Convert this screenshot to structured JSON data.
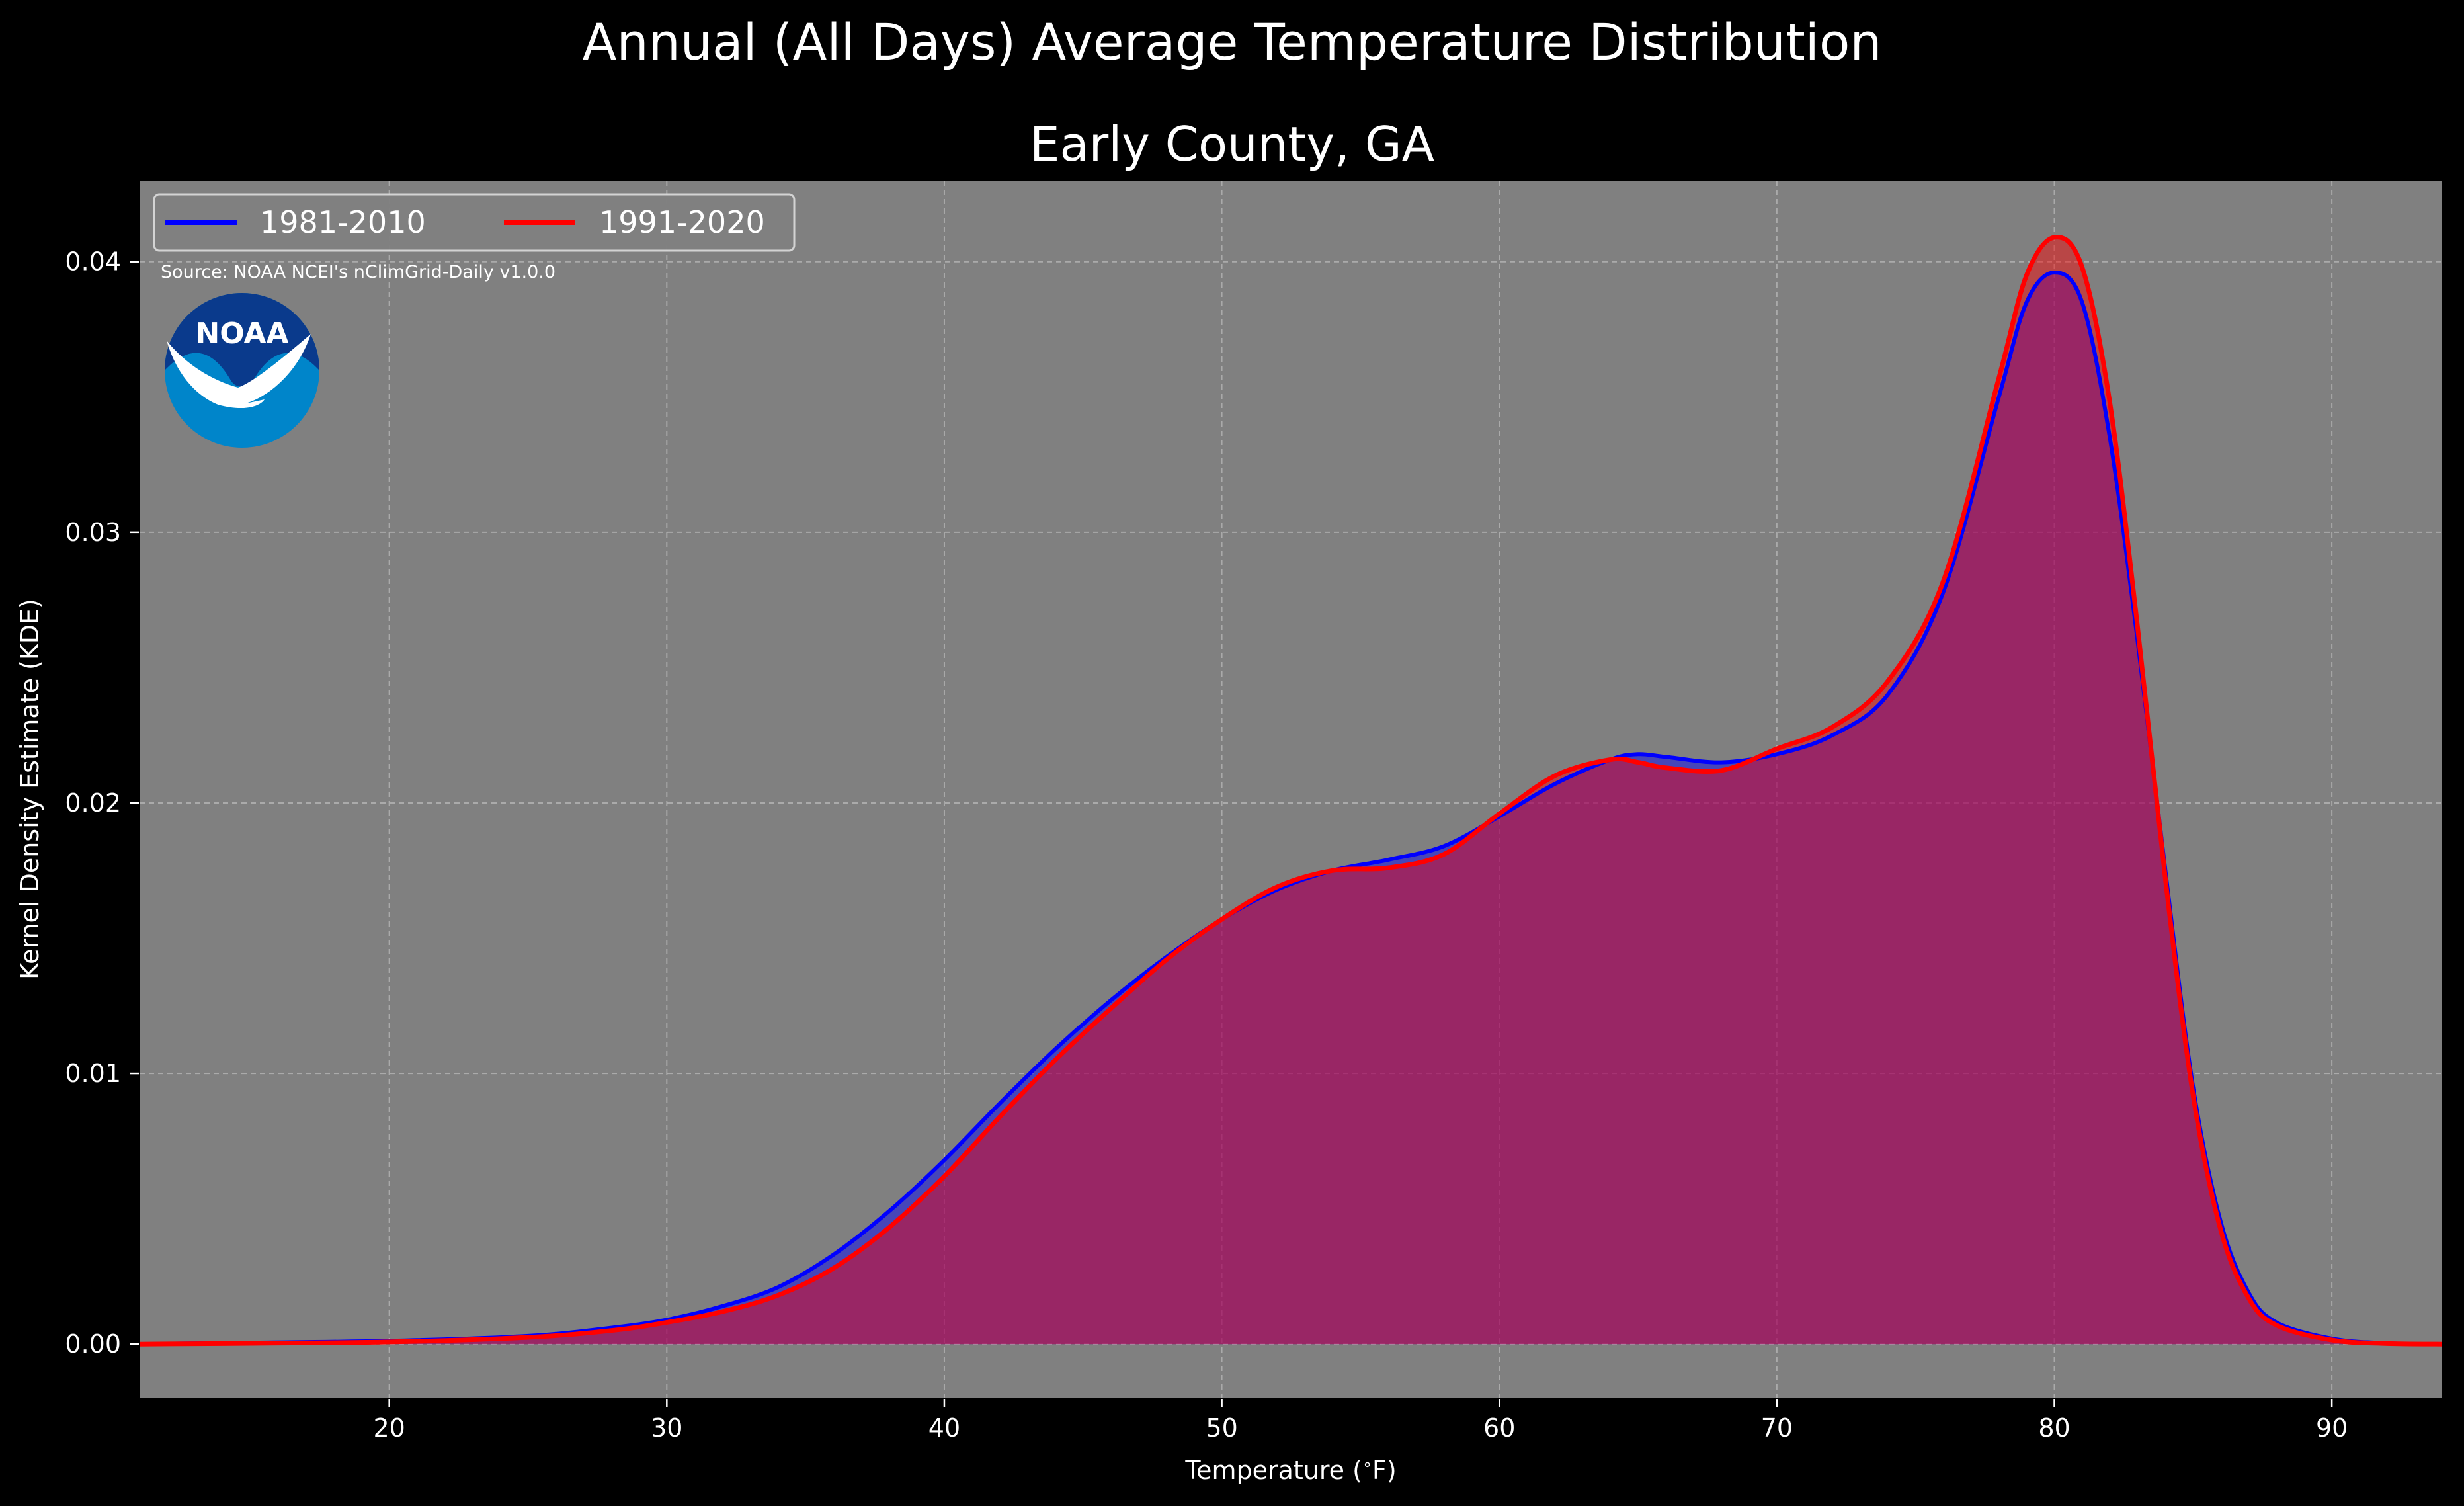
{
  "figure": {
    "title": "Annual (All Days) Average Temperature Distribution",
    "subtitle": "Early County, GA",
    "source": "Source: NOAA NCEI's nClimGrid-Daily v1.0.0",
    "logo_text": "NOAA",
    "background": "#000000",
    "plot_background": "#808080"
  },
  "chart_data": {
    "type": "area",
    "title": "Early County, GA",
    "xlabel": "Temperature ($^\\circ$F)",
    "ylabel": "Kernel Density Estimate (KDE)",
    "xlim": [
      11,
      94
    ],
    "ylim": [
      -0.002,
      0.043
    ],
    "xticks": [
      20,
      30,
      40,
      50,
      60,
      70,
      80,
      90
    ],
    "xtick_labels": [
      "20",
      "30",
      "40",
      "50",
      "60",
      "70",
      "80",
      "90"
    ],
    "yticks": [
      0.0,
      0.01,
      0.02,
      0.03,
      0.04
    ],
    "ytick_labels": [
      "0.00",
      "0.01",
      "0.02",
      "0.03",
      "0.04"
    ],
    "grid": true,
    "legend_position": "top-left",
    "series": [
      {
        "name": "1981-2010",
        "color": "#0000ff",
        "fill": "#0000ff",
        "x": [
          11,
          15,
          20,
          25,
          28,
          30,
          32,
          34,
          36,
          38,
          40,
          42,
          44,
          46,
          48,
          50,
          52,
          54,
          56,
          58,
          60,
          62,
          64,
          65,
          66,
          68,
          70,
          72,
          74,
          76,
          78,
          79,
          80,
          81,
          82,
          83,
          84,
          85,
          86,
          87,
          88,
          90,
          92,
          94
        ],
        "y": [
          0.0,
          5e-05,
          0.00012,
          0.0003,
          0.0006,
          0.0009,
          0.0014,
          0.0021,
          0.0033,
          0.0049,
          0.0068,
          0.0089,
          0.0109,
          0.0127,
          0.0143,
          0.0157,
          0.0168,
          0.0175,
          0.0179,
          0.0184,
          0.0195,
          0.0207,
          0.0216,
          0.0218,
          0.0217,
          0.0215,
          0.0218,
          0.0225,
          0.024,
          0.0278,
          0.035,
          0.0385,
          0.0396,
          0.0385,
          0.0335,
          0.026,
          0.0175,
          0.0095,
          0.0045,
          0.0019,
          0.0008,
          0.0002,
          3e-05,
          0.0
        ]
      },
      {
        "name": "1991-2020",
        "color": "#ff0000",
        "fill": "#ff0000",
        "x": [
          11,
          15,
          20,
          25,
          28,
          30,
          32,
          34,
          36,
          38,
          40,
          42,
          44,
          46,
          48,
          50,
          52,
          54,
          56,
          58,
          60,
          62,
          64,
          65,
          66,
          68,
          70,
          72,
          74,
          76,
          78,
          79,
          80,
          81,
          82,
          83,
          84,
          85,
          86,
          87,
          88,
          90,
          92,
          94
        ],
        "y": [
          0.0,
          3e-05,
          8e-05,
          0.00025,
          0.0005,
          0.0008,
          0.0012,
          0.0018,
          0.0028,
          0.0043,
          0.0062,
          0.0084,
          0.0105,
          0.0124,
          0.0142,
          0.0157,
          0.0169,
          0.0175,
          0.0176,
          0.0181,
          0.0196,
          0.021,
          0.0216,
          0.0215,
          0.0213,
          0.0212,
          0.022,
          0.0228,
          0.0245,
          0.0282,
          0.0357,
          0.0395,
          0.0409,
          0.0398,
          0.0348,
          0.0265,
          0.0172,
          0.0092,
          0.0042,
          0.0017,
          0.0007,
          0.00015,
          2e-05,
          0.0
        ]
      }
    ]
  }
}
